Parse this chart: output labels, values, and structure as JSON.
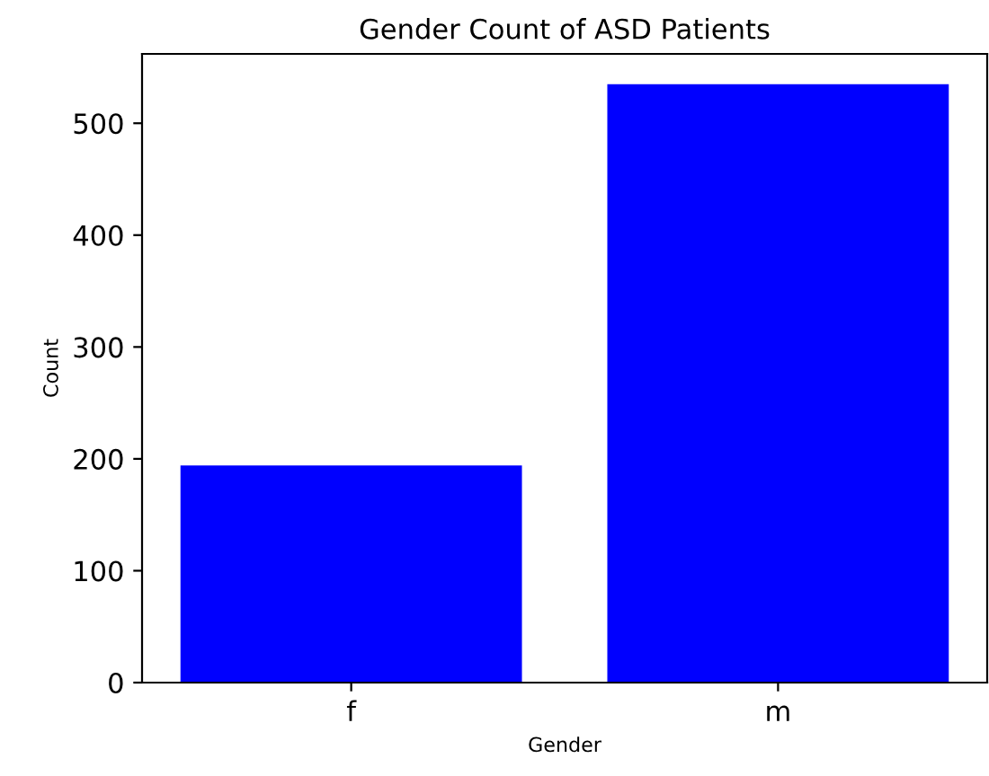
{
  "chart_data": {
    "type": "bar",
    "title": "Gender Count of ASD Patients",
    "xlabel": "Gender",
    "ylabel": "Count",
    "categories": [
      "f",
      "m"
    ],
    "values": [
      194,
      535
    ],
    "color": "#0000ff",
    "ylim": [
      0,
      562
    ],
    "yticks": [
      0,
      100,
      200,
      300,
      400,
      500
    ],
    "grid": false
  }
}
